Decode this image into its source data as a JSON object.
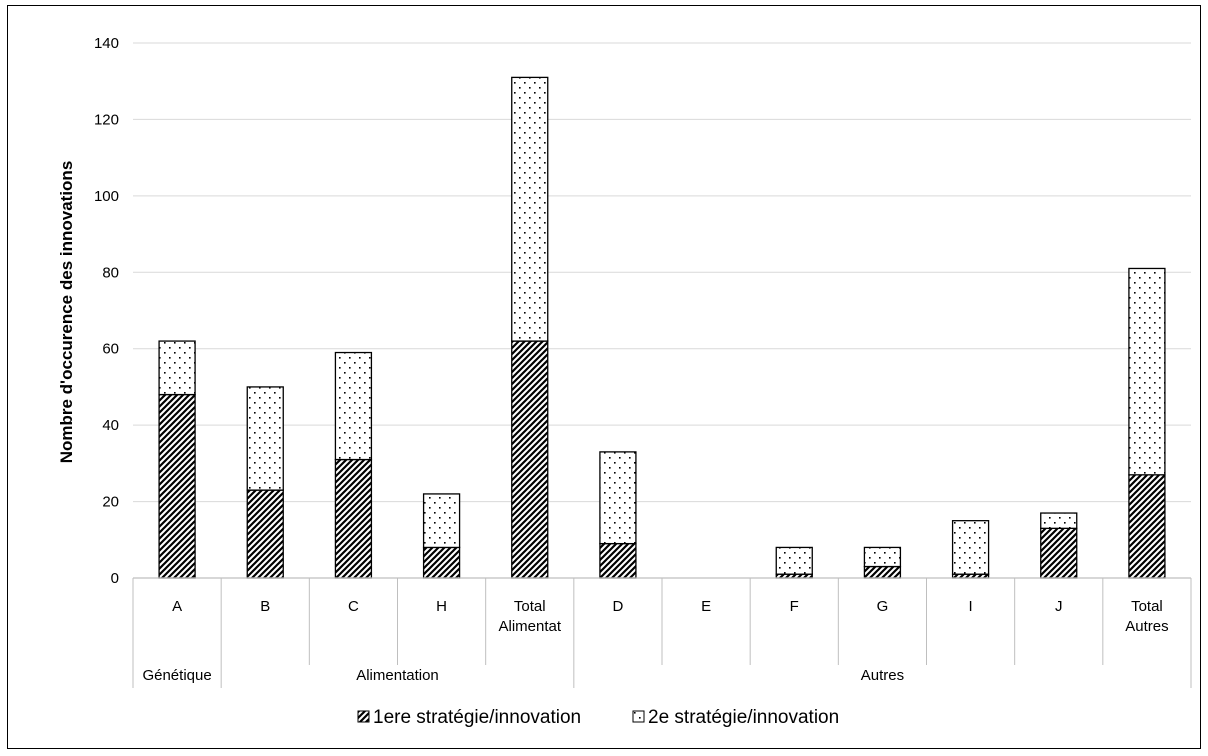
{
  "chart_data": {
    "type": "bar",
    "stacked": true,
    "title": "",
    "xlabel": "",
    "ylabel": "Nombre d'occurence des innovations",
    "ylim": [
      0,
      140
    ],
    "yticks": [
      0,
      20,
      40,
      60,
      80,
      100,
      120,
      140
    ],
    "grid": true,
    "legend_position": "bottom",
    "categories": [
      "A",
      "B",
      "C",
      "H",
      "Total Alimentat",
      "D",
      "E",
      "F",
      "G",
      "I",
      "J",
      "Total Autres"
    ],
    "category_display": [
      [
        "A"
      ],
      [
        "B"
      ],
      [
        "C"
      ],
      [
        "H"
      ],
      [
        "Total",
        "Alimentat"
      ],
      [
        "D"
      ],
      [
        "E"
      ],
      [
        "F"
      ],
      [
        "G"
      ],
      [
        "I"
      ],
      [
        "J"
      ],
      [
        "Total",
        "Autres"
      ]
    ],
    "groups": [
      {
        "label": "Génétique",
        "members": [
          "A"
        ]
      },
      {
        "label": "Alimentation",
        "members": [
          "B",
          "C",
          "H",
          "Total Alimentat"
        ]
      },
      {
        "label": "Autres",
        "members": [
          "D",
          "E",
          "F",
          "G",
          "I",
          "J",
          "Total Autres"
        ]
      }
    ],
    "series": [
      {
        "name": "1ere stratégie/innovation",
        "pattern": "diagonal-hatch",
        "values": [
          48,
          23,
          31,
          8,
          62,
          9,
          0,
          1,
          3,
          1,
          13,
          27
        ]
      },
      {
        "name": "2e stratégie/innovation",
        "pattern": "dots",
        "values": [
          14,
          27,
          28,
          14,
          69,
          24,
          0,
          7,
          5,
          14,
          4,
          54
        ]
      }
    ],
    "colors": {
      "bar_border": "#000000",
      "grid": "#d9d9d9",
      "axis": "#bfbfbf"
    }
  }
}
